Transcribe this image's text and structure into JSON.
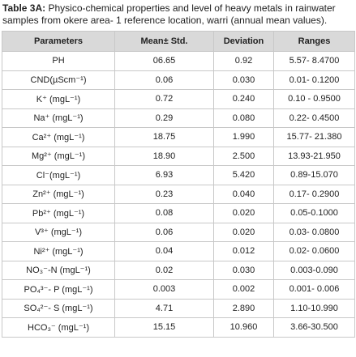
{
  "caption": {
    "label": "Table 3A:",
    "text": "Physico-chemical properties and level of heavy metals in rainwater samples from okere area- 1 reference location, warri (annual mean values)."
  },
  "table": {
    "headers": [
      "Parameters",
      "Mean± Std.",
      "Deviation",
      "Ranges"
    ],
    "rows": [
      [
        "PH",
        "06.65",
        "0.92",
        "5.57- 8.4700"
      ],
      [
        "CND(µScm⁻¹)",
        "0.06",
        "0.030",
        "0.01- 0.1200"
      ],
      [
        "K⁺ (mgL⁻¹)",
        "0.72",
        "0.240",
        "0.10 - 0.9500"
      ],
      [
        "Na⁺ (mgL⁻¹)",
        "0.29",
        "0.080",
        "0.22- 0.4500"
      ],
      [
        "Ca²⁺ (mgL⁻¹)",
        "18.75",
        "1.990",
        "15.77- 21.380"
      ],
      [
        "Mg²⁺ (mgL⁻¹)",
        "18.90",
        "2.500",
        "13.93-21.950"
      ],
      [
        "Cl⁻(mgL⁻¹)",
        "6.93",
        "5.420",
        "0.89-15.070"
      ],
      [
        "Zn²⁺ (mgL⁻¹)",
        "0.23",
        "0.040",
        "0.17- 0.2900"
      ],
      [
        "Pb²⁺ (mgL⁻¹)",
        "0.08",
        "0.020",
        "0.05-0.1000"
      ],
      [
        "V³⁺ (mgL⁻¹)",
        "0.06",
        "0.020",
        "0.03- 0.0800"
      ],
      [
        "Ni²⁺ (mgL⁻¹)",
        "0.04",
        "0.012",
        "0.02- 0.0600"
      ],
      [
        "NO₃⁻-N (mgL⁻¹)",
        "0.02",
        "0.030",
        "0.003-0.090"
      ],
      [
        "PO₄³⁻- P (mgL⁻¹)",
        "0.003",
        "0.002",
        "0.001- 0.006"
      ],
      [
        "SO₄²⁻- S (mgL⁻¹)",
        "4.71",
        "2.890",
        "1.10-10.990"
      ],
      [
        "HCO₃⁻ (mgL⁻¹)",
        "15.15",
        "10.960",
        "3.66-30.500"
      ]
    ]
  }
}
